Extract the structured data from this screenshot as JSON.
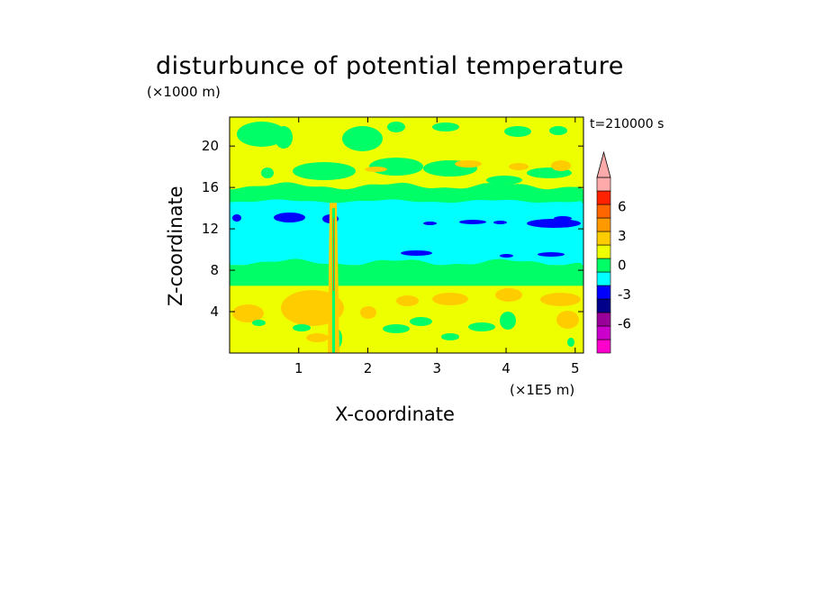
{
  "chart_data": {
    "type": "heatmap",
    "title": "disturbunce of potential temperature",
    "xlabel": "X-coordinate",
    "ylabel": "Z-coordinate",
    "x_unit_label": "(×1E5 m)",
    "y_unit_label": "(×1000 m)",
    "time_label": "t=210000 s",
    "xlim": [
      0,
      5.12
    ],
    "ylim": [
      0,
      22.8
    ],
    "x_ticks": [
      1,
      2,
      3,
      4,
      5
    ],
    "x_tick_labels": [
      "1",
      "2",
      "3",
      "4",
      "5"
    ],
    "y_ticks": [
      4,
      8,
      12,
      16,
      20
    ],
    "y_tick_labels": [
      "4",
      "8",
      "12",
      "16",
      "20"
    ],
    "colorbar": {
      "levels": [
        -9,
        -8,
        -7,
        -6,
        -5,
        -4,
        -3,
        -2,
        -1,
        0,
        1,
        2,
        3,
        4,
        5,
        6,
        7,
        8,
        9
      ],
      "colors": [
        "#ff00cc",
        "#cc00cc",
        "#990099",
        "#00008b",
        "#0000ff",
        "#00ffff",
        "#00ff66",
        "#eeff00",
        "#ffcc00",
        "#ff9900",
        "#ff6600",
        "#ff2200",
        "#ffaaaa"
      ],
      "tick_values": [
        6,
        3,
        0,
        -3,
        -6
      ],
      "tick_labels": [
        "6",
        "3",
        "0",
        "-3",
        "-6"
      ],
      "extend": "max"
    },
    "bands": [
      {
        "zmin": 0,
        "zmax": 6.5,
        "level": "yellow-green mix",
        "value": 0.5
      },
      {
        "zmin": 6.5,
        "zmax": 8.5,
        "level": "green",
        "value": -1.5
      },
      {
        "zmin": 8.5,
        "zmax": 14.5,
        "level": "cyan",
        "value": -2.5
      },
      {
        "zmin": 14.5,
        "zmax": 15.8,
        "level": "green",
        "value": -1.5
      },
      {
        "zmin": 15.8,
        "zmax": 22.8,
        "level": "yellow",
        "value": 0.5
      }
    ],
    "background_color": "#eeff00"
  }
}
